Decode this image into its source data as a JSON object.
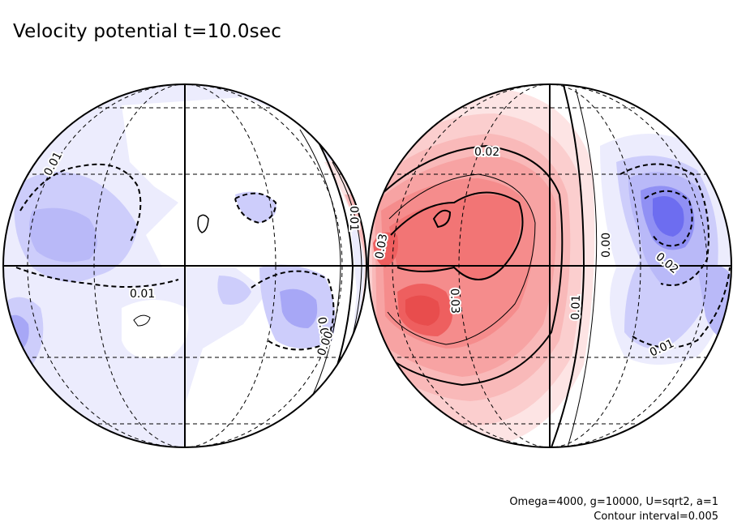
{
  "chart_data": {
    "type": "contour",
    "title": "Velocity potential t=10.0sec",
    "params_text": "Omega=4000, g=10000, U=sqrt2, a=1",
    "contour_text": "Contour interval=0.005",
    "contour_interval": 0.005,
    "projection": "orthographic, two hemispheres",
    "color_scale": {
      "negative": "#5a5aff",
      "zero": "#ffffff",
      "positive": "#ff4a4a"
    },
    "contour_labels": [
      {
        "hemisphere": "left",
        "text": "0.01"
      },
      {
        "hemisphere": "left",
        "text": "0.01"
      },
      {
        "hemisphere": "left",
        "text": "0.01"
      },
      {
        "hemisphere": "left",
        "text": "0.00"
      },
      {
        "hemisphere": "left",
        "text": "0.01"
      },
      {
        "hemisphere": "right",
        "text": "0.02"
      },
      {
        "hemisphere": "right",
        "text": "0.03"
      },
      {
        "hemisphere": "right",
        "text": "0.03"
      },
      {
        "hemisphere": "right",
        "text": "0.00"
      },
      {
        "hemisphere": "right",
        "text": "0.01"
      },
      {
        "hemisphere": "right",
        "text": "0.02"
      },
      {
        "hemisphere": "right",
        "text": "0.01"
      }
    ]
  }
}
